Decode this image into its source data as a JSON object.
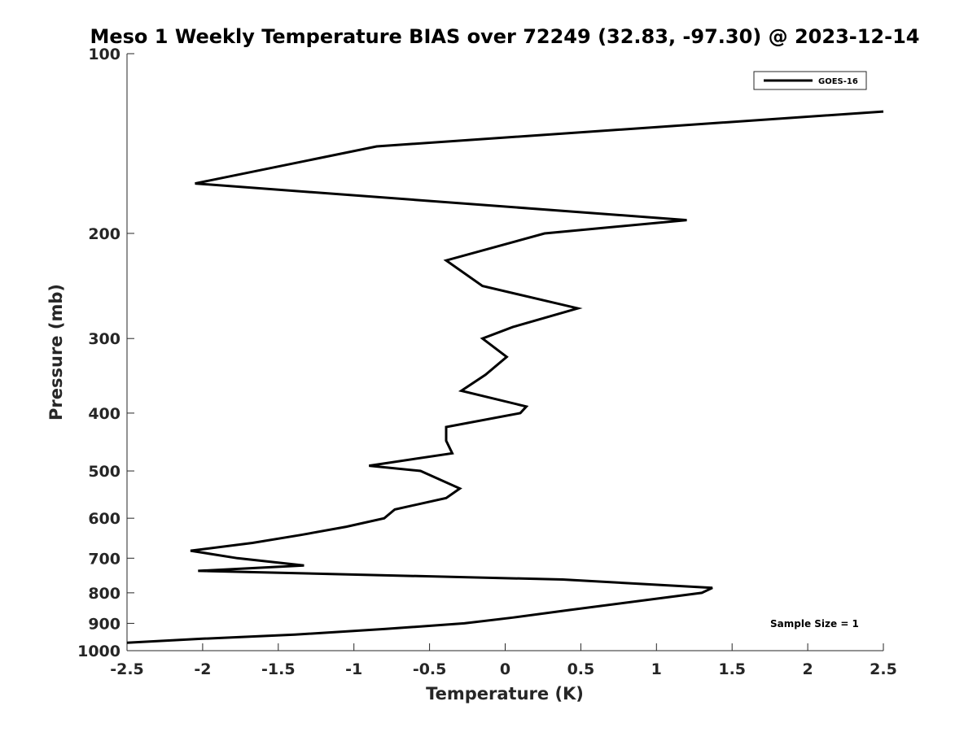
{
  "chart_data": {
    "type": "line",
    "title": "Meso 1 Weekly Temperature BIAS over 72249 (32.83, -97.30) @ 2023-12-14",
    "xlabel": "Temperature (K)",
    "ylabel": "Pressure (mb)",
    "xlim": [
      -2.5,
      2.5
    ],
    "ylim": [
      100,
      1000
    ],
    "y_scale": "log",
    "y_reversed": true,
    "x_ticks": [
      "-2.5",
      "-2",
      "-1.5",
      "-1",
      "-0.5",
      "0",
      "0.5",
      "1",
      "1.5",
      "2",
      "2.5"
    ],
    "x_tick_values": [
      -2.5,
      -2,
      -1.5,
      -1,
      -0.5,
      0,
      0.5,
      1,
      1.5,
      2,
      2.5
    ],
    "y_ticks": [
      "100",
      "200",
      "300",
      "400",
      "500",
      "600",
      "700",
      "800",
      "900",
      "1000"
    ],
    "y_tick_values": [
      100,
      200,
      300,
      400,
      500,
      600,
      700,
      800,
      900,
      1000
    ],
    "grid": false,
    "legend_position": "top-right",
    "annotation": "Sample Size = 1",
    "series": [
      {
        "name": "GOES-16",
        "color": "#000000",
        "points": [
          [
            2.5,
            125
          ],
          [
            -0.85,
            143
          ],
          [
            -2.05,
            165
          ],
          [
            1.2,
            190
          ],
          [
            0.26,
            200
          ],
          [
            -0.39,
            222
          ],
          [
            -0.15,
            245
          ],
          [
            0.48,
            267
          ],
          [
            0.05,
            287
          ],
          [
            -0.15,
            300
          ],
          [
            0.01,
            322
          ],
          [
            -0.13,
            345
          ],
          [
            -0.29,
            367
          ],
          [
            0.14,
            390
          ],
          [
            0.1,
            400
          ],
          [
            -0.39,
            422
          ],
          [
            -0.39,
            445
          ],
          [
            -0.35,
            467
          ],
          [
            -0.9,
            490
          ],
          [
            -0.56,
            500
          ],
          [
            -0.3,
            535
          ],
          [
            -0.39,
            555
          ],
          [
            -0.73,
            580
          ],
          [
            -0.8,
            600
          ],
          [
            -1.05,
            620
          ],
          [
            -1.35,
            640
          ],
          [
            -1.67,
            660
          ],
          [
            -2.08,
            680
          ],
          [
            -1.77,
            700
          ],
          [
            -1.33,
            720
          ],
          [
            -2.03,
            735
          ],
          [
            0.38,
            760
          ],
          [
            1.37,
            785
          ],
          [
            1.3,
            800
          ],
          [
            0.42,
            855
          ],
          [
            0.05,
            880
          ],
          [
            -0.27,
            900
          ],
          [
            -0.8,
            920
          ],
          [
            -1.39,
            940
          ],
          [
            -2.0,
            955
          ],
          [
            -2.5,
            970
          ]
        ]
      }
    ]
  }
}
